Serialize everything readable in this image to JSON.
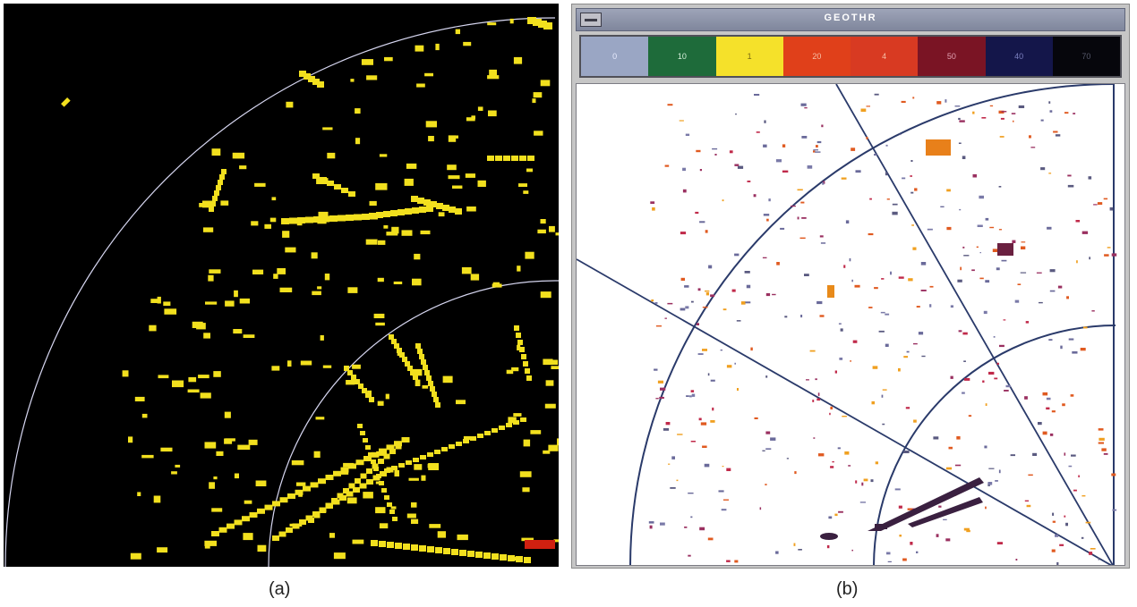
{
  "panel_a": {
    "caption": "(a)",
    "colors": {
      "background": "#000000",
      "echo": "#f2e01e",
      "ring": "#d6d6f0",
      "clutter": "#d02010"
    }
  },
  "panel_b": {
    "caption": "(b)",
    "window": {
      "title": "GEOTHR",
      "menu_icon": "window-menu-icon"
    },
    "legend": [
      {
        "label": "0",
        "color": "#9aa6c4",
        "text_color": "#e8ecff"
      },
      {
        "label": "10",
        "color": "#1e6b3a",
        "text_color": "#d8f0dc"
      },
      {
        "label": "1",
        "color": "#f5e12a",
        "text_color": "#7a6a10"
      },
      {
        "label": "20",
        "color": "#e0401a",
        "text_color": "#f7c0a8"
      },
      {
        "label": "4",
        "color": "#d83a22",
        "text_color": "#f7c0a8"
      },
      {
        "label": "50",
        "color": "#7a1424",
        "text_color": "#e0a0b0"
      },
      {
        "label": "40",
        "color": "#14164a",
        "text_color": "#7c80c0"
      },
      {
        "label": "70",
        "color": "#06060c",
        "text_color": "#55586a"
      }
    ],
    "colors": {
      "background": "#ffffff",
      "grid": "#2a3a6a"
    }
  }
}
